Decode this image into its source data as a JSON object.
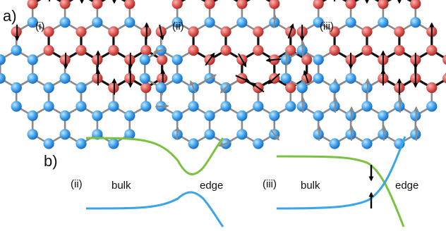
{
  "panel_a": {
    "label": "a)",
    "subpanels": [
      {
        "tag": "(i)",
        "spin_style": "black out-of-plane arrows on red sites"
      },
      {
        "tag": "(ii)",
        "spin_style": "black in-plane arrows on red sites, grey on blue"
      },
      {
        "tag": "(iii)",
        "spin_style": "black out-of-plane arrows on red sites, grey on blue"
      }
    ]
  },
  "panel_b": {
    "label": "b)",
    "plots": [
      {
        "tag": "(ii)",
        "left_text": "bulk",
        "right_text": "edge",
        "curves": [
          "upper-green",
          "lower-blue"
        ],
        "gap": true
      },
      {
        "tag": "(iii)",
        "left_text": "bulk",
        "right_text": "edge",
        "curves": [
          "green",
          "blue"
        ],
        "crossing": true,
        "arrows": [
          "down",
          "up"
        ]
      }
    ]
  },
  "colors": {
    "red_site": "#d9534f",
    "blue_site": "#3a9ee8",
    "black_bond": "#111111",
    "grey_bond": "#8a8a8a",
    "green_curve": "#7cc242",
    "blue_curve": "#3aa6e8",
    "spin_black": "#000000",
    "spin_grey": "#8a8a8a"
  }
}
